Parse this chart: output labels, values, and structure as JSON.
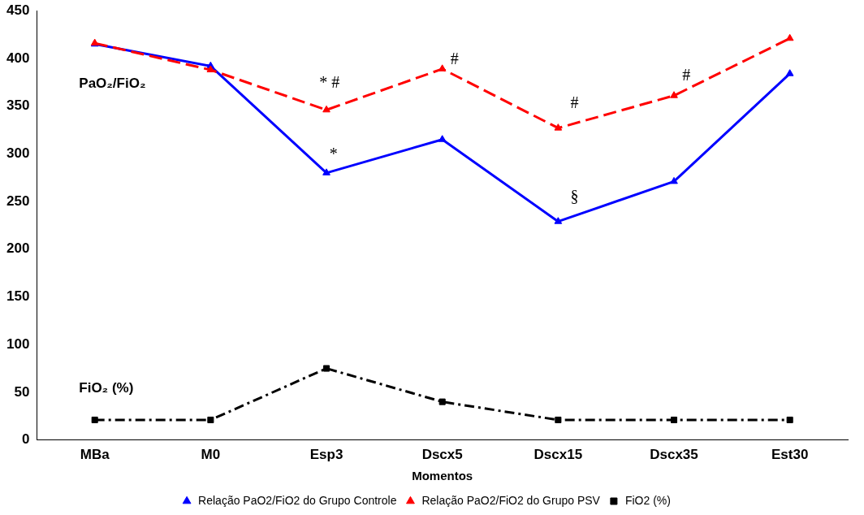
{
  "chart_data": {
    "type": "line",
    "xlabel": "Momentos",
    "categories": [
      "MBa",
      "M0",
      "Esp3",
      "Dscx5",
      "Dscx15",
      "Dscx35",
      "Est30"
    ],
    "series": [
      {
        "name": "Relação PaO2/FiO2 do Grupo Controle",
        "color": "#0000ff",
        "values": [
          415,
          392,
          280,
          315,
          229,
          271,
          384
        ],
        "marker": "triangle",
        "line_style": "solid"
      },
      {
        "name": "Relação PaO2/FiO2 do Grupo PSV",
        "color": "#ff0000",
        "values": [
          416,
          388,
          346,
          389,
          327,
          361,
          421
        ],
        "marker": "triangle",
        "line_style": "dashed"
      },
      {
        "name": "FiO2 (%)",
        "color": "#000000",
        "values": [
          21,
          21,
          75,
          40,
          21,
          21,
          21
        ],
        "marker": "square",
        "line_style": "dotted"
      }
    ],
    "ylim": [
      0,
      450
    ],
    "yticks": [
      0,
      50,
      100,
      150,
      200,
      250,
      300,
      350,
      400,
      450
    ],
    "grid": false,
    "legend": "bottom",
    "annotations": [
      "PaO₂/FiO₂",
      "FiO₂ (%)",
      "* #",
      "*",
      "#",
      "#",
      "§",
      "#"
    ]
  }
}
